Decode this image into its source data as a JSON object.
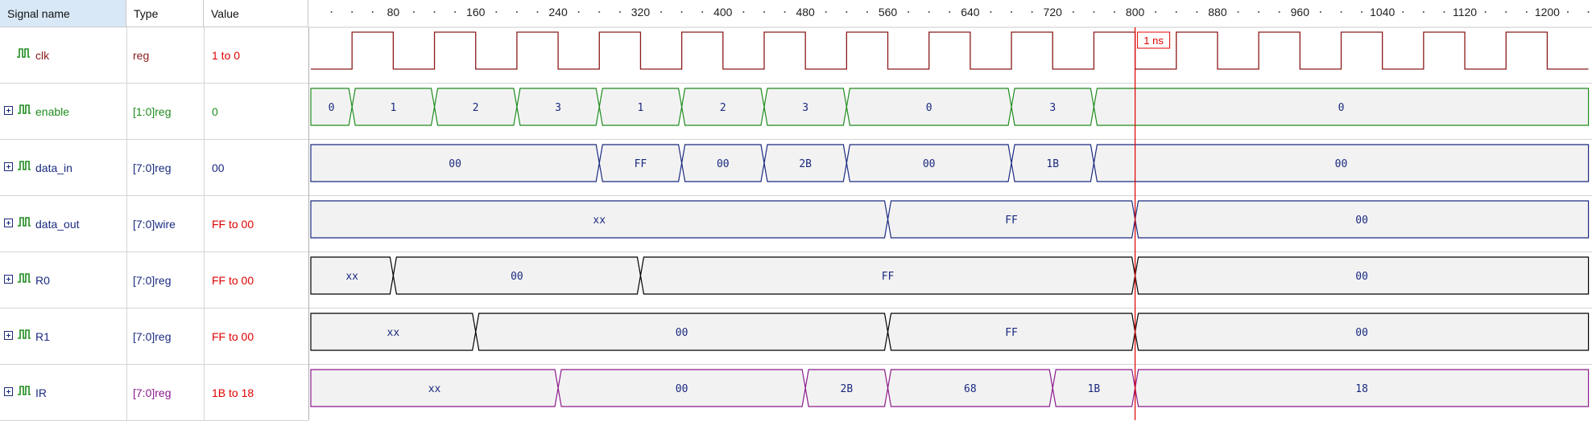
{
  "columns": {
    "name": "Signal name",
    "type": "Type",
    "value": "Value"
  },
  "timeline": {
    "ticks": [
      "80",
      "160",
      "240",
      "320",
      "400",
      "480",
      "560",
      "640",
      "720",
      "800",
      "880",
      "960",
      "1040",
      "1120",
      "1200"
    ],
    "cursor_label": "1 ns",
    "cursor_color": "#e00000"
  },
  "signals": [
    {
      "name": "clk",
      "type": "reg",
      "value": "1 to 0",
      "color": "#8b1a1a",
      "expandable": false,
      "kind": "clock",
      "name_color": "#8b1a1a",
      "value_color": "#e00000",
      "waveform": {
        "period": 80,
        "high_first_edge": 40
      }
    },
    {
      "name": "enable",
      "type": "[1:0]reg",
      "value": "0",
      "color": "#1e8c1e",
      "expandable": true,
      "kind": "bus",
      "name_color": "#1e8c1e",
      "value_color": "#1e8c1e",
      "segments": [
        {
          "start": 0,
          "end": 40,
          "label": "0"
        },
        {
          "start": 40,
          "end": 120,
          "label": "1"
        },
        {
          "start": 120,
          "end": 200,
          "label": "2"
        },
        {
          "start": 200,
          "end": 280,
          "label": "3"
        },
        {
          "start": 280,
          "end": 360,
          "label": "1"
        },
        {
          "start": 360,
          "end": 440,
          "label": "2"
        },
        {
          "start": 440,
          "end": 520,
          "label": "3"
        },
        {
          "start": 520,
          "end": 680,
          "label": "0"
        },
        {
          "start": 680,
          "end": 760,
          "label": "3"
        },
        {
          "start": 760,
          "end": 1240,
          "label": "0"
        }
      ]
    },
    {
      "name": "data_in",
      "type": "[7:0]reg",
      "value": "00",
      "color": "#1a2a80",
      "expandable": true,
      "kind": "bus",
      "name_color": "#1a2a80",
      "value_color": "#1a2a80",
      "segments": [
        {
          "start": 0,
          "end": 280,
          "label": "00"
        },
        {
          "start": 280,
          "end": 360,
          "label": "FF"
        },
        {
          "start": 360,
          "end": 440,
          "label": "00"
        },
        {
          "start": 440,
          "end": 520,
          "label": "2B"
        },
        {
          "start": 520,
          "end": 680,
          "label": "00"
        },
        {
          "start": 680,
          "end": 760,
          "label": "1B"
        },
        {
          "start": 760,
          "end": 1240,
          "label": "00"
        }
      ]
    },
    {
      "name": "data_out",
      "type": "[7:0]wire",
      "value": "FF to 00",
      "color": "#1a2a80",
      "expandable": true,
      "kind": "bus",
      "name_color": "#1a2a80",
      "value_color": "#e00000",
      "segments": [
        {
          "start": 0,
          "end": 560,
          "label": "xx"
        },
        {
          "start": 560,
          "end": 800,
          "label": "FF"
        },
        {
          "start": 800,
          "end": 1240,
          "label": "00"
        }
      ]
    },
    {
      "name": "R0",
      "type": "[7:0]reg",
      "value": "FF to 00",
      "color": "#000000",
      "expandable": true,
      "kind": "bus",
      "name_color": "#1a2a80",
      "value_color": "#e00000",
      "segments": [
        {
          "start": 0,
          "end": 80,
          "label": "xx"
        },
        {
          "start": 80,
          "end": 320,
          "label": "00"
        },
        {
          "start": 320,
          "end": 800,
          "label": "FF"
        },
        {
          "start": 800,
          "end": 1240,
          "label": "00"
        }
      ]
    },
    {
      "name": "R1",
      "type": "[7:0]reg",
      "value": "FF to 00",
      "color": "#000000",
      "expandable": true,
      "kind": "bus",
      "name_color": "#1a2a80",
      "value_color": "#e00000",
      "segments": [
        {
          "start": 0,
          "end": 160,
          "label": "xx"
        },
        {
          "start": 160,
          "end": 560,
          "label": "00"
        },
        {
          "start": 560,
          "end": 800,
          "label": "FF"
        },
        {
          "start": 800,
          "end": 1240,
          "label": "00"
        }
      ]
    },
    {
      "name": "IR",
      "type": "[7:0]reg",
      "value": "1B to 18",
      "color": "#8b1a8b",
      "expandable": true,
      "kind": "bus",
      "name_color": "#1a2a80",
      "value_color": "#e00000",
      "segments": [
        {
          "start": 0,
          "end": 240,
          "label": "xx"
        },
        {
          "start": 240,
          "end": 480,
          "label": "00"
        },
        {
          "start": 480,
          "end": 560,
          "label": "2B"
        },
        {
          "start": 560,
          "end": 720,
          "label": "68"
        },
        {
          "start": 720,
          "end": 800,
          "label": "1B"
        },
        {
          "start": 800,
          "end": 1240,
          "label": "18"
        }
      ]
    }
  ]
}
